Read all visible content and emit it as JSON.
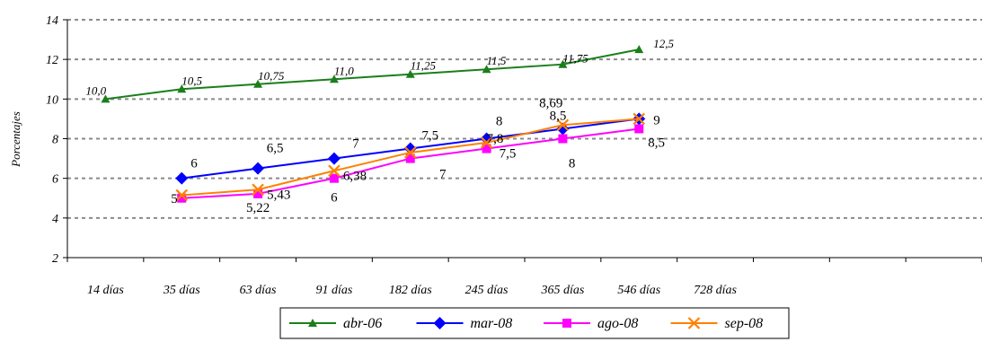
{
  "chart_data": {
    "type": "line",
    "title": "",
    "ylabel": "Porcentajes",
    "xlabel": "",
    "categories": [
      "14 días",
      "35 días",
      "63 días",
      "91 días",
      "182 días",
      "245 días",
      "365 días",
      "546 días",
      "728 días"
    ],
    "ylim": [
      2,
      14
    ],
    "yticks": [
      2,
      4,
      6,
      8,
      10,
      12,
      14
    ],
    "grid": true,
    "legend_position": "bottom",
    "series": [
      {
        "name": "abr-06",
        "color": "#1a7f1a",
        "marker": "triangle",
        "values": [
          10.0,
          10.5,
          10.75,
          11.0,
          11.25,
          11.5,
          11.75,
          12.5,
          null
        ],
        "labels": [
          "10,0",
          "10,5",
          "10,75",
          "11,0",
          "11,25",
          "11,5",
          "11,75",
          "12,5",
          null
        ]
      },
      {
        "name": "mar-08",
        "color": "#0000ff",
        "marker": "diamond",
        "values": [
          null,
          6,
          6.5,
          7,
          7.5,
          8,
          8.5,
          9,
          null
        ],
        "labels": [
          null,
          "6",
          "6,5",
          "7",
          "7,5",
          "8",
          "8,5",
          "9",
          null
        ]
      },
      {
        "name": "ago-08",
        "color": "#ff00ff",
        "marker": "square",
        "values": [
          null,
          5,
          5.22,
          6,
          7,
          7.5,
          8,
          8.5,
          null
        ],
        "labels": [
          null,
          "5",
          "5,22",
          "6",
          "7",
          "7,5",
          "8",
          "8,5",
          null
        ]
      },
      {
        "name": "sep-08",
        "color": "#ff8000",
        "marker": "x",
        "values": [
          null,
          5.15,
          5.43,
          6.38,
          7.3,
          7.8,
          8.69,
          9,
          null
        ],
        "labels": [
          null,
          null,
          "5,43",
          "6,38",
          null,
          "7,8",
          "8,69",
          null,
          null
        ]
      }
    ]
  }
}
